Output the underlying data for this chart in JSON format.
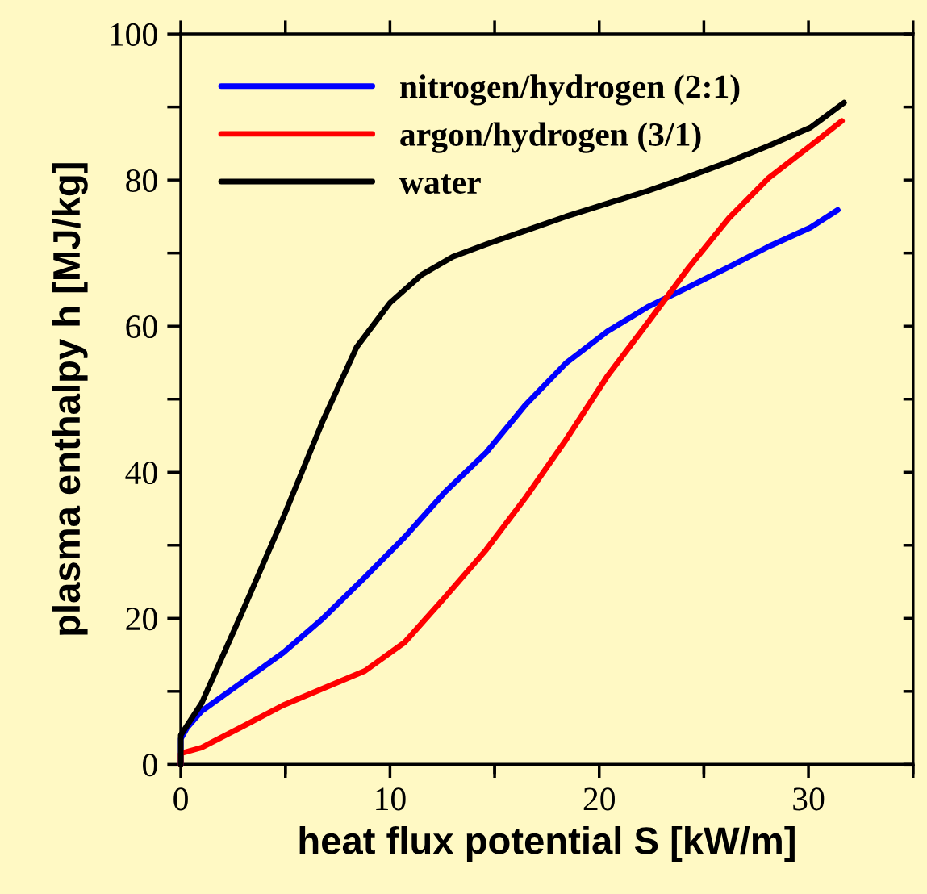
{
  "chart_data": {
    "type": "line",
    "xlabel": "heat flux potential S [kW/m]",
    "ylabel": "plasma enthalpy h [MJ/kg]",
    "xlim": [
      0,
      35
    ],
    "ylim": [
      0,
      100
    ],
    "xticks": [
      0,
      {
        "value": 5,
        "label": null
      },
      10,
      {
        "value": 15,
        "label": null
      },
      20,
      {
        "value": 25,
        "label": null
      },
      30,
      {
        "value": 35,
        "label": null
      }
    ],
    "yticks": [
      0,
      {
        "value": 10,
        "label": null
      },
      20,
      {
        "value": 30,
        "label": null
      },
      40,
      {
        "value": 50,
        "label": null
      },
      60,
      {
        "value": 70,
        "label": null
      },
      80,
      {
        "value": 90,
        "label": null
      },
      100
    ],
    "grid": false,
    "legend": "top left",
    "line_style": "solid",
    "marker": "none",
    "series": [
      {
        "name": "nitrogen/hydrogen (2:1)",
        "color": "#0000ff",
        "x": [
          0,
          0,
          0.3,
          1.0,
          2.9,
          4.9,
          6.8,
          8.8,
          10.7,
          12.6,
          14.6,
          16.5,
          18.4,
          20.4,
          22.3,
          24.3,
          26.2,
          28.1,
          30.1,
          31.4
        ],
        "values": [
          0,
          3.5,
          5,
          7.3,
          11.2,
          15.3,
          20.0,
          25.6,
          31.1,
          37.2,
          42.7,
          49.3,
          54.9,
          59.3,
          62.6,
          65.4,
          68.1,
          70.9,
          73.5,
          75.9
        ]
      },
      {
        "name": "argon/hydrogen (3/1)",
        "color": "#ff0000",
        "x": [
          0,
          0,
          1.0,
          2.9,
          4.9,
          6.8,
          8.8,
          10.7,
          12.6,
          14.6,
          16.5,
          18.4,
          20.4,
          22.3,
          24.3,
          26.2,
          28.1,
          30.1,
          31.6
        ],
        "values": [
          0,
          1.5,
          2.3,
          5.1,
          8.1,
          10.4,
          12.8,
          16.7,
          22.8,
          29.4,
          36.6,
          44.4,
          53.2,
          60.4,
          68.1,
          74.8,
          80.3,
          84.7,
          88.1
        ]
      },
      {
        "name": "water",
        "color": "#000000",
        "x": [
          0,
          0,
          1.0,
          2.9,
          4.9,
          6.8,
          8.4,
          10.0,
          11.5,
          13.0,
          14.6,
          16.5,
          18.4,
          20.4,
          22.3,
          24.3,
          26.2,
          28.1,
          30.1,
          31.7
        ],
        "values": [
          0,
          4,
          8.4,
          20.6,
          33.8,
          47.1,
          57.1,
          63.2,
          67.0,
          69.5,
          71.2,
          73.1,
          75.0,
          76.8,
          78.5,
          80.5,
          82.5,
          84.7,
          87.2,
          90.6
        ]
      }
    ]
  }
}
